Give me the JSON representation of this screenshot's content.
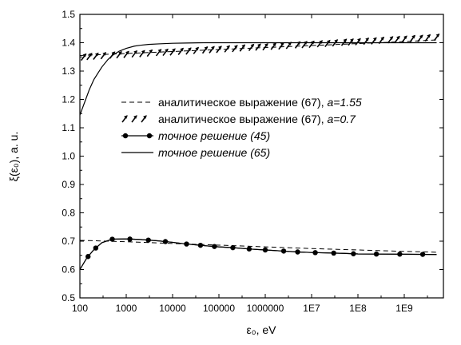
{
  "chart_data": {
    "type": "line",
    "xscale": "log",
    "xlim": [
      100,
      7000000000
    ],
    "ylim": [
      0.5,
      1.5
    ],
    "xlabel": "ε₀, eV",
    "ylabel": "ξ(ε₀), a. u.",
    "x_tick_labels": [
      {
        "value": 100,
        "label": "100"
      },
      {
        "value": 1000,
        "label": "1000"
      },
      {
        "value": 10000,
        "label": "10000"
      },
      {
        "value": 100000,
        "label": "100000"
      },
      {
        "value": 1000000,
        "label": "1000000"
      },
      {
        "value": 10000000,
        "label": "1E7"
      },
      {
        "value": 100000000,
        "label": "1E8"
      },
      {
        "value": 1000000000,
        "label": "1E9"
      }
    ],
    "y_tick_labels": [
      {
        "value": 0.5,
        "label": "0.5"
      },
      {
        "value": 0.6,
        "label": "0.6"
      },
      {
        "value": 0.7,
        "label": "0.7"
      },
      {
        "value": 0.8,
        "label": "0.8"
      },
      {
        "value": 0.9,
        "label": "0.9"
      },
      {
        "value": 1.0,
        "label": "1.0"
      },
      {
        "value": 1.1,
        "label": "1.1"
      },
      {
        "value": 1.2,
        "label": "1.2"
      },
      {
        "value": 1.3,
        "label": "1.3"
      },
      {
        "value": 1.4,
        "label": "1.4"
      },
      {
        "value": 1.5,
        "label": "1.5"
      }
    ],
    "grid": false,
    "legend_placement": "center-right",
    "legend": [
      {
        "id": "dashed",
        "text": "аналитическое выражение (67), ",
        "param": "a=1.55",
        "style": "dashed"
      },
      {
        "id": "arrows",
        "text": "аналитическое выражение (67), ",
        "param": "a=0.7",
        "style": "arrows"
      },
      {
        "id": "dots",
        "text": "точное решение (45)",
        "param": "",
        "style": "line-dots"
      },
      {
        "id": "solid",
        "text": "точное решение (65)",
        "param": "",
        "style": "solid"
      }
    ],
    "series": [
      {
        "id": "upper_solid",
        "style": "solid",
        "x": [
          100,
          130,
          160,
          200,
          250,
          300,
          400,
          500,
          700,
          1000,
          1500,
          2000,
          3000,
          5000,
          7000,
          10000,
          20000,
          50000,
          100000,
          1000000,
          10000000,
          100000000,
          1000000000,
          5000000000
        ],
        "y": [
          1.145,
          1.195,
          1.235,
          1.27,
          1.295,
          1.315,
          1.34,
          1.355,
          1.37,
          1.38,
          1.388,
          1.391,
          1.394,
          1.396,
          1.397,
          1.398,
          1.399,
          1.4,
          1.4,
          1.4,
          1.4,
          1.4,
          1.4,
          1.4
        ]
      },
      {
        "id": "upper_dashed",
        "style": "dashed",
        "x": [
          100,
          1000,
          10000,
          100000,
          1000000,
          10000000,
          100000000,
          1000000000,
          5000000000
        ],
        "y": [
          1.355,
          1.362,
          1.369,
          1.376,
          1.383,
          1.39,
          1.397,
          1.404,
          1.41
        ]
      },
      {
        "id": "upper_arrows",
        "style": "arrows",
        "x": [
          120,
          160,
          220,
          320,
          500,
          700,
          1000,
          1500,
          2200,
          3200,
          5000,
          7000,
          10000,
          15000,
          22000,
          32000,
          50000,
          70000,
          100000,
          150000,
          220000,
          320000,
          500000,
          700000,
          1000000,
          1500000,
          2200000,
          3200000,
          5000000,
          7000000,
          10000000,
          15000000,
          22000000,
          32000000,
          50000000,
          70000000,
          100000000,
          150000000,
          220000000,
          320000000,
          500000000,
          700000000,
          1000000000,
          1500000000,
          2200000000,
          3200000000,
          5000000000
        ],
        "y": [
          1.349,
          1.351,
          1.352,
          1.354,
          1.356,
          1.357,
          1.358,
          1.36,
          1.361,
          1.363,
          1.365,
          1.366,
          1.367,
          1.369,
          1.37,
          1.372,
          1.374,
          1.375,
          1.376,
          1.378,
          1.379,
          1.381,
          1.383,
          1.384,
          1.385,
          1.387,
          1.388,
          1.39,
          1.392,
          1.393,
          1.394,
          1.396,
          1.397,
          1.399,
          1.401,
          1.402,
          1.403,
          1.405,
          1.406,
          1.408,
          1.41,
          1.411,
          1.412,
          1.414,
          1.415,
          1.417,
          1.419
        ]
      },
      {
        "id": "lower_dashed",
        "style": "dashed",
        "x": [
          100,
          1000,
          10000,
          100000,
          1000000,
          10000000,
          100000000,
          1000000000,
          5000000000
        ],
        "y": [
          0.703,
          0.698,
          0.692,
          0.686,
          0.68,
          0.674,
          0.669,
          0.664,
          0.661
        ]
      },
      {
        "id": "lower_dots",
        "style": "line-dots",
        "x": [
          100,
          140,
          200,
          300,
          500,
          1000,
          2000,
          5000,
          10000,
          20000,
          50000,
          100000,
          200000,
          500000,
          1000000,
          2000000,
          5000000,
          10000000,
          50000000,
          100000000,
          1000000000,
          5000000000
        ],
        "y": [
          0.6,
          0.64,
          0.67,
          0.695,
          0.707,
          0.708,
          0.706,
          0.701,
          0.696,
          0.69,
          0.684,
          0.68,
          0.677,
          0.672,
          0.669,
          0.666,
          0.662,
          0.66,
          0.657,
          0.655,
          0.654,
          0.653
        ],
        "marker_x": [
          150,
          220,
          500,
          1200,
          3000,
          7000,
          20000,
          40000,
          80000,
          200000,
          450000,
          1000000,
          2500000,
          5000000,
          12000000,
          30000000,
          80000000,
          250000000,
          800000000,
          2500000000
        ]
      },
      {
        "id": "lower_solid",
        "style": "solid",
        "x": [
          100,
          140,
          200,
          300,
          500,
          1000,
          2000,
          5000,
          10000,
          20000,
          50000,
          100000,
          200000,
          500000,
          1000000,
          2000000,
          5000000,
          10000000,
          50000000,
          100000000,
          1000000000,
          5000000000
        ],
        "y": [
          0.6,
          0.64,
          0.67,
          0.695,
          0.707,
          0.708,
          0.706,
          0.701,
          0.696,
          0.69,
          0.684,
          0.68,
          0.677,
          0.672,
          0.669,
          0.666,
          0.662,
          0.66,
          0.657,
          0.655,
          0.654,
          0.653
        ]
      }
    ]
  }
}
